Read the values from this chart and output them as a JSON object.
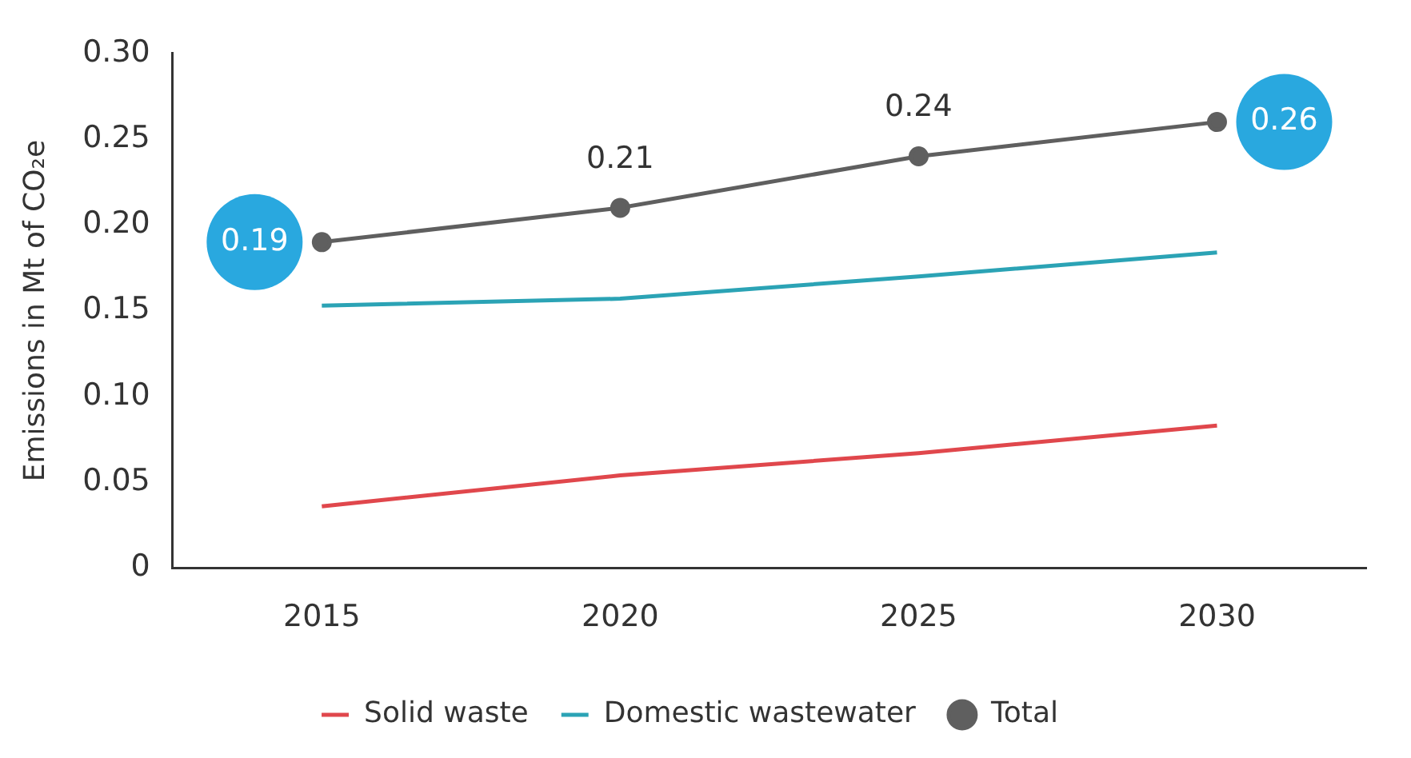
{
  "chart_data": {
    "type": "line",
    "ylabel": "Emissions in Mt of CO₂e",
    "categories": [
      "2015",
      "2020",
      "2025",
      "2030"
    ],
    "series": [
      {
        "name": "Solid waste",
        "color": "#e0474c",
        "values": [
          0.036,
          0.054,
          0.067,
          0.083
        ],
        "marker": "none"
      },
      {
        "name": "Domestic wastewater",
        "color": "#2ba3b5",
        "values": [
          0.153,
          0.157,
          0.17,
          0.184
        ],
        "marker": "none"
      },
      {
        "name": "Total",
        "color": "#5f5f5f",
        "values": [
          0.19,
          0.21,
          0.24,
          0.26
        ],
        "marker": "circle",
        "value_labels": [
          "0.19",
          "0.21",
          "0.24",
          "0.26"
        ]
      }
    ],
    "ylim": [
      0,
      0.3
    ],
    "yticks": [
      0,
      {
        "value": 0.05,
        "label": "0.05"
      },
      {
        "value": 0.1,
        "label": "0.10"
      },
      {
        "value": 0.15,
        "label": "0.15"
      },
      {
        "value": 0.2,
        "label": "0.20"
      },
      {
        "value": 0.25,
        "label": "0.25"
      },
      {
        "value": 0.3,
        "label": "0.30"
      }
    ],
    "grid": false,
    "legend": "bottom",
    "line_style": "solid"
  }
}
